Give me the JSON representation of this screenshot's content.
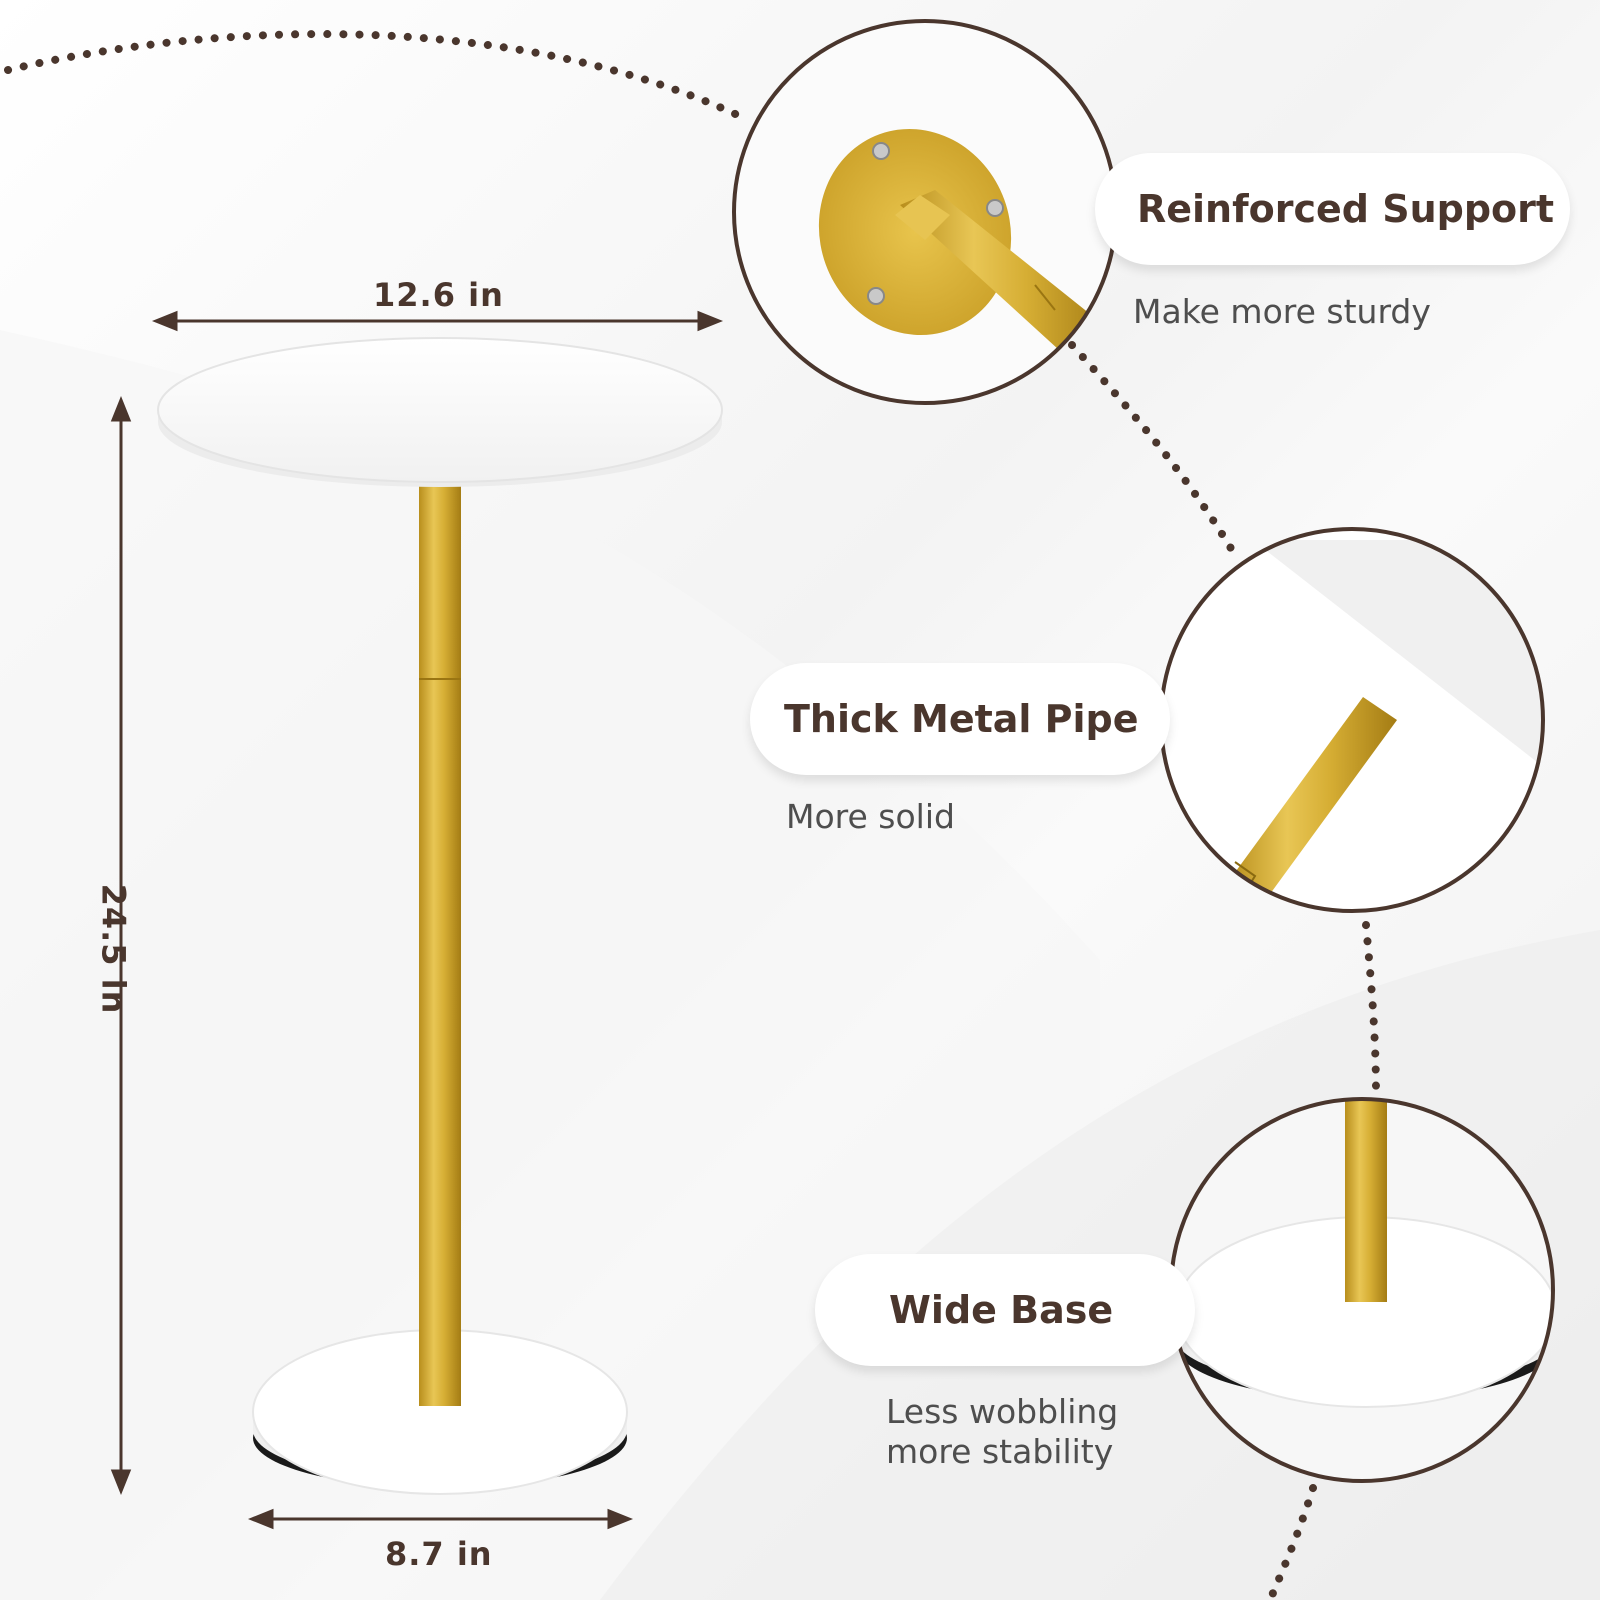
{
  "dimensions": {
    "top_width": "12.6 in",
    "height": "24.5 in",
    "base_width": "8.7 in"
  },
  "features": [
    {
      "title": "Reinforced Support",
      "subtitle": "Make more sturdy"
    },
    {
      "title": "Thick Metal Pipe",
      "subtitle": "More solid"
    },
    {
      "title": "Wide Base",
      "subtitle_line1": "Less wobbling",
      "subtitle_line2": "more stability"
    }
  ],
  "colors": {
    "gold": "#d4ab2c",
    "brown": "#4a362d",
    "white": "#ffffff"
  }
}
